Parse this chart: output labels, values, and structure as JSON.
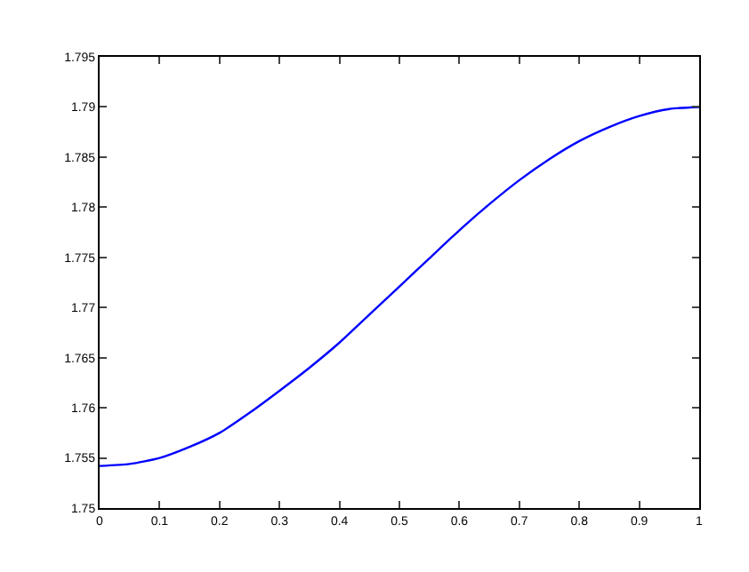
{
  "chart_data": {
    "type": "line",
    "x": [
      0,
      0.05,
      0.1,
      0.15,
      0.2,
      0.25,
      0.3,
      0.35,
      0.4,
      0.45,
      0.5,
      0.55,
      0.6,
      0.65,
      0.7,
      0.75,
      0.8,
      0.85,
      0.9,
      0.95,
      1
    ],
    "series": [
      {
        "color": "#0000ff",
        "values": [
          1.7542,
          1.7544,
          1.755,
          1.7561,
          1.7575,
          1.7595,
          1.7617,
          1.764,
          1.7665,
          1.7693,
          1.7721,
          1.7749,
          1.7777,
          1.7803,
          1.7827,
          1.7848,
          1.7866,
          1.788,
          1.7891,
          1.7898,
          1.79
        ]
      }
    ],
    "xlim": [
      0,
      1
    ],
    "xticks": [
      0,
      0.1,
      0.2,
      0.3,
      0.4,
      0.5,
      0.6,
      0.7,
      0.8,
      0.9,
      1
    ],
    "ylim": [
      1.75,
      1.795
    ],
    "yticks": [
      1.75,
      1.755,
      1.76,
      1.765,
      1.77,
      1.775,
      1.78,
      1.785,
      1.79,
      1.795
    ],
    "marker": "none",
    "line_style": "solid"
  }
}
